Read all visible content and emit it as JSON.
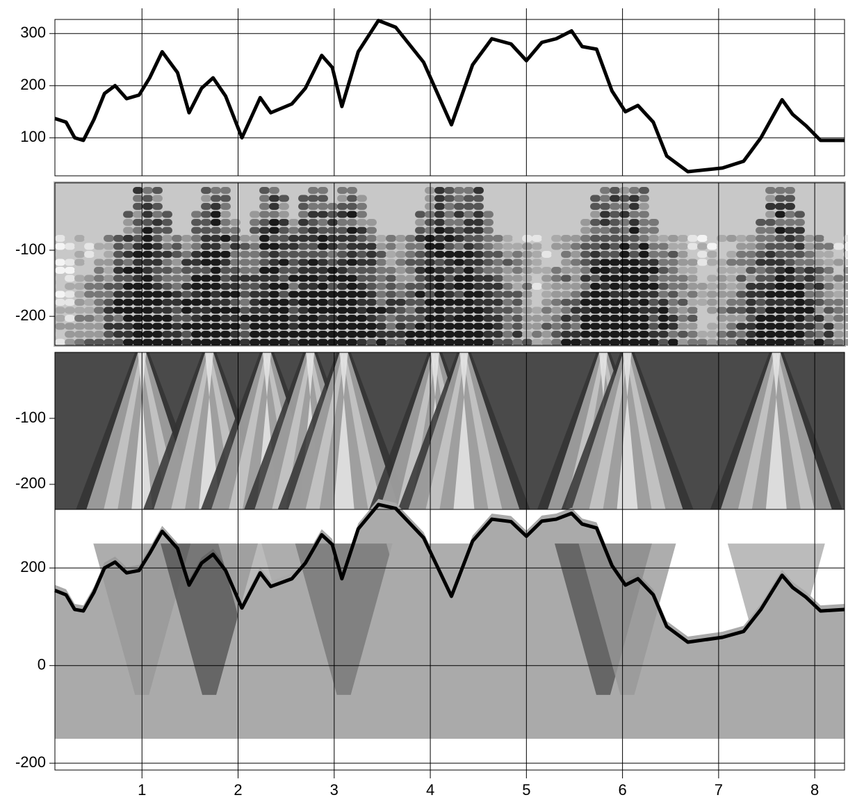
{
  "chart_data": [
    {
      "type": "line",
      "xlim": [
        0.094,
        8.31
      ],
      "ylim": [
        27,
        327
      ],
      "yticks": [
        100,
        200,
        300
      ],
      "grid": true,
      "color": "#000000",
      "x": [
        0.094,
        0.21,
        0.3,
        0.39,
        0.5,
        0.61,
        0.72,
        0.84,
        0.97,
        1.08,
        1.21,
        1.37,
        1.49,
        1.62,
        1.74,
        1.87,
        2.04,
        2.23,
        2.34,
        2.56,
        2.7,
        2.87,
        2.98,
        3.08,
        3.25,
        3.46,
        3.64,
        3.93,
        4.22,
        4.44,
        4.64,
        4.84,
        5.0,
        5.16,
        5.31,
        5.47,
        5.58,
        5.73,
        5.89,
        6.03,
        6.16,
        6.32,
        6.46,
        6.68,
        7.04,
        7.26,
        7.44,
        7.66,
        7.77,
        7.91,
        8.06,
        8.31
      ],
      "values": [
        137,
        130,
        100,
        95,
        135,
        185,
        200,
        175,
        182,
        215,
        265,
        225,
        148,
        195,
        215,
        180,
        100,
        177,
        148,
        165,
        195,
        258,
        235,
        160,
        265,
        325,
        312,
        245,
        125,
        240,
        290,
        280,
        248,
        283,
        290,
        305,
        275,
        270,
        190,
        150,
        162,
        130,
        65,
        35,
        42,
        55,
        100,
        173,
        145,
        123,
        95,
        95
      ]
    },
    {
      "type": "section",
      "xlim": [
        0.094,
        8.31
      ],
      "ylim": [
        -244,
        2
      ],
      "yticks": [
        -100,
        -200
      ]
    },
    {
      "type": "section",
      "xlim": [
        0.094,
        8.31
      ],
      "ylim": [
        -238,
        0
      ],
      "yticks": [
        -100,
        -200
      ]
    },
    {
      "type": "line",
      "xlim": [
        0.094,
        8.31
      ],
      "ylim": [
        -214,
        320
      ],
      "yticks": [
        -200,
        0,
        200
      ],
      "xticks": [
        1,
        2,
        3,
        4,
        5,
        6,
        7,
        8
      ],
      "grid": true,
      "color": "#000000",
      "x": [
        0.094,
        0.21,
        0.3,
        0.39,
        0.5,
        0.61,
        0.72,
        0.84,
        0.97,
        1.08,
        1.21,
        1.37,
        1.49,
        1.62,
        1.74,
        1.87,
        2.04,
        2.23,
        2.34,
        2.56,
        2.7,
        2.87,
        2.98,
        3.08,
        3.25,
        3.46,
        3.64,
        3.93,
        4.22,
        4.44,
        4.64,
        4.84,
        5.0,
        5.16,
        5.31,
        5.47,
        5.58,
        5.73,
        5.89,
        6.03,
        6.16,
        6.32,
        6.46,
        6.68,
        7.04,
        7.26,
        7.44,
        7.66,
        7.77,
        7.91,
        8.06,
        8.31
      ],
      "values": [
        154,
        145,
        115,
        112,
        150,
        200,
        212,
        190,
        195,
        230,
        275,
        240,
        165,
        210,
        228,
        195,
        118,
        190,
        162,
        178,
        210,
        268,
        248,
        178,
        280,
        330,
        322,
        262,
        142,
        255,
        300,
        295,
        265,
        296,
        300,
        312,
        290,
        282,
        205,
        165,
        178,
        145,
        80,
        48,
        58,
        70,
        115,
        185,
        160,
        140,
        112,
        115
      ]
    }
  ]
}
